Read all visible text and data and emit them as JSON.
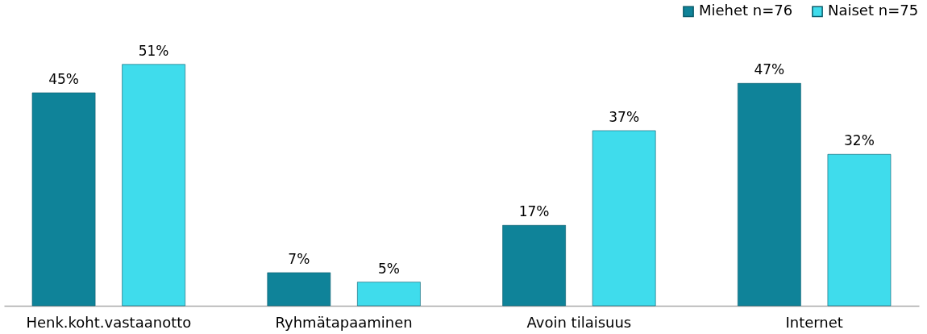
{
  "chart_data": {
    "type": "bar",
    "categories": [
      "Henk.koht.vastaanotto",
      "Ryhmätapaaminen",
      "Avoin tilaisuus",
      "Internet"
    ],
    "series": [
      {
        "name": "Miehet n=76",
        "color": "#0f8399",
        "values": [
          45,
          7,
          17,
          47
        ],
        "value_labels": [
          "45%",
          "7%",
          "17%",
          "47%"
        ]
      },
      {
        "name": "Naiset n=75",
        "color": "#3fdcec",
        "values": [
          51,
          5,
          37,
          32
        ],
        "value_labels": [
          "51%",
          "5%",
          "37%",
          "32%"
        ]
      }
    ],
    "legend": "top right"
  }
}
